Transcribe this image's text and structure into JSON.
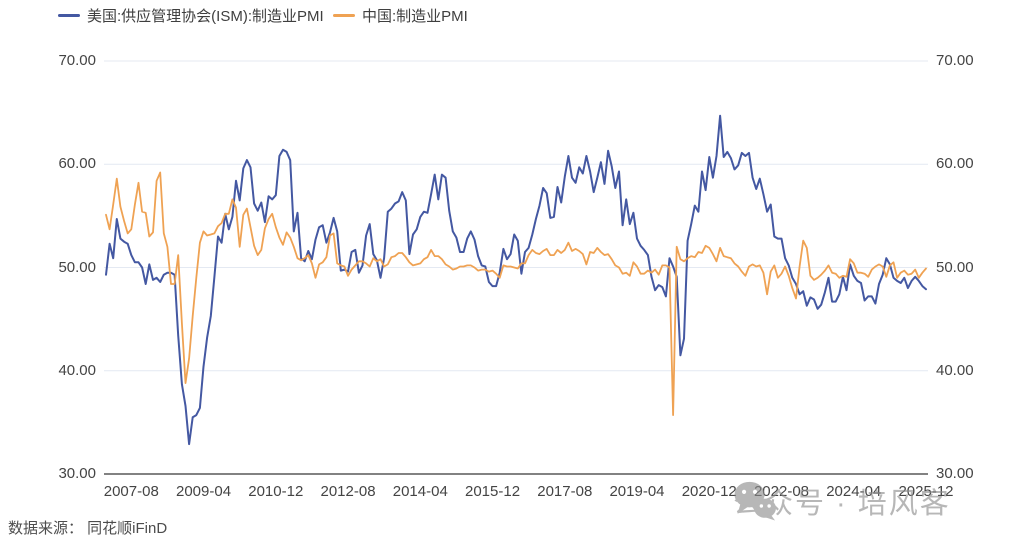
{
  "legend": {
    "us_label": "美国:供应管理协会(ISM):制造业PMI",
    "china_label": "中国:制造业PMI"
  },
  "footer": {
    "source": "数据来源： 同花顺iFinD"
  },
  "watermark": {
    "text": "公众号 · 培风客",
    "icon": "wechat-icon"
  },
  "colors": {
    "us": "#4458A2",
    "china": "#EFA253",
    "grid": "#E4E9F2",
    "axis": "#595959",
    "tick_text": "#444444",
    "watermark": "#8F8F8F",
    "background": "#FFFFFF"
  },
  "chart_data": {
    "type": "line",
    "title": "",
    "xlabel": "",
    "ylabel": "",
    "x_start": "2007-01",
    "x_end": "2025-12",
    "x_frequency": "monthly",
    "ylim": [
      30,
      70
    ],
    "y_ticks": [
      30,
      40,
      50,
      60,
      70
    ],
    "y_tick_labels": [
      "30.00",
      "40.00",
      "50.00",
      "60.00",
      "70.00"
    ],
    "y_axis_sides": [
      "left",
      "right"
    ],
    "grid": "horizontal",
    "legend_position": "top-left",
    "x_tick_labels": [
      "2007-08",
      "2009-04",
      "2010-12",
      "2012-08",
      "2014-04",
      "2015-12",
      "2017-08",
      "2019-04",
      "2020-12",
      "2022-08",
      "2024-04",
      "2025-12"
    ],
    "x_tick_month_indices": [
      7,
      27,
      47,
      67,
      87,
      107,
      127,
      147,
      167,
      187,
      207,
      227
    ],
    "series": [
      {
        "name": "美国:供应管理协会(ISM):制造业PMI",
        "color": "#4458A2",
        "values": [
          49.3,
          52.3,
          50.9,
          54.7,
          52.8,
          52.5,
          52.3,
          51.2,
          50.5,
          50.5,
          50.0,
          48.4,
          50.3,
          48.8,
          49.0,
          48.6,
          49.3,
          49.5,
          49.5,
          49.3,
          43.4,
          38.7,
          36.6,
          32.9,
          35.5,
          35.7,
          36.4,
          40.4,
          43.2,
          45.3,
          49.1,
          53.0,
          52.4,
          55.2,
          53.7,
          54.9,
          58.4,
          56.5,
          59.6,
          60.4,
          59.7,
          56.2,
          55.5,
          56.3,
          54.4,
          56.9,
          56.6,
          57.0,
          60.8,
          61.4,
          61.2,
          60.4,
          53.5,
          55.3,
          50.9,
          50.6,
          51.6,
          50.8,
          52.7,
          53.9,
          54.1,
          52.4,
          53.4,
          54.8,
          53.5,
          49.7,
          49.8,
          49.6,
          51.5,
          51.7,
          49.5,
          50.2,
          53.1,
          54.2,
          51.3,
          50.7,
          49.0,
          50.9,
          55.4,
          55.7,
          56.2,
          56.4,
          57.3,
          56.5,
          51.3,
          53.2,
          53.7,
          54.9,
          55.4,
          55.3,
          57.1,
          59.0,
          56.6,
          59.0,
          58.7,
          55.5,
          53.5,
          52.9,
          51.5,
          51.5,
          52.8,
          53.5,
          52.7,
          51.1,
          50.2,
          50.1,
          48.6,
          48.2,
          48.2,
          49.5,
          51.8,
          50.8,
          51.3,
          53.2,
          52.6,
          49.4,
          51.5,
          51.9,
          53.2,
          54.7,
          56.0,
          57.7,
          57.2,
          54.8,
          54.9,
          57.8,
          56.3,
          58.8,
          60.8,
          58.7,
          58.2,
          59.7,
          59.1,
          60.8,
          59.3,
          57.3,
          58.7,
          60.2,
          58.1,
          61.3,
          59.8,
          57.7,
          59.3,
          54.1,
          56.6,
          54.2,
          55.3,
          52.8,
          52.1,
          51.7,
          51.2,
          49.1,
          47.8,
          48.3,
          48.1,
          47.2,
          50.9,
          50.1,
          49.1,
          41.5,
          43.1,
          52.6,
          54.2,
          56.0,
          55.4,
          59.3,
          57.5,
          60.7,
          58.7,
          60.8,
          64.7,
          60.7,
          61.2,
          60.6,
          59.5,
          59.9,
          61.1,
          60.8,
          61.1,
          58.7,
          57.6,
          58.6,
          57.1,
          55.4,
          56.1,
          53.0,
          52.8,
          52.8,
          50.9,
          50.2,
          49.0,
          48.4,
          47.4,
          47.7,
          46.3,
          47.1,
          46.9,
          46.0,
          46.4,
          47.6,
          49.0,
          46.7,
          46.7,
          47.4,
          49.1,
          47.8,
          50.3,
          49.2,
          48.7,
          48.5,
          46.8,
          47.2,
          47.2,
          46.5,
          48.4,
          49.3,
          50.9,
          50.3,
          49.0,
          48.7,
          48.5,
          49.0,
          48.0,
          48.7,
          49.1,
          48.7,
          48.2,
          47.9
        ]
      },
      {
        "name": "中国:制造业PMI",
        "color": "#EFA253",
        "values": [
          55.1,
          53.7,
          56.1,
          58.6,
          55.9,
          54.5,
          53.3,
          53.7,
          56.1,
          58.2,
          55.4,
          55.3,
          53.0,
          53.4,
          58.4,
          59.2,
          53.3,
          52.0,
          48.4,
          48.4,
          51.2,
          44.6,
          38.8,
          41.2,
          45.3,
          49.0,
          52.4,
          53.5,
          53.1,
          53.2,
          53.3,
          54.0,
          54.3,
          55.2,
          55.2,
          56.6,
          55.8,
          52.0,
          55.1,
          55.7,
          53.9,
          52.1,
          51.2,
          51.7,
          53.8,
          54.7,
          55.2,
          53.9,
          52.9,
          52.2,
          53.4,
          52.9,
          52.0,
          50.9,
          50.7,
          50.9,
          51.2,
          50.4,
          49.0,
          50.3,
          50.5,
          51.0,
          53.1,
          53.3,
          50.4,
          50.2,
          50.1,
          49.2,
          49.8,
          50.2,
          50.6,
          50.6,
          50.4,
          50.1,
          50.9,
          50.6,
          50.8,
          50.1,
          50.3,
          51.0,
          51.1,
          51.4,
          51.4,
          51.0,
          50.5,
          50.2,
          50.3,
          50.4,
          50.8,
          51.0,
          51.7,
          51.1,
          51.1,
          50.8,
          50.3,
          50.1,
          49.8,
          49.9,
          50.1,
          50.1,
          50.2,
          50.2,
          50.0,
          49.7,
          49.8,
          49.8,
          49.6,
          49.7,
          49.4,
          49.0,
          50.2,
          50.1,
          50.1,
          50.0,
          49.9,
          50.4,
          50.4,
          51.2,
          51.7,
          51.4,
          51.3,
          51.6,
          51.8,
          51.2,
          51.2,
          51.7,
          51.4,
          51.7,
          52.4,
          51.6,
          51.8,
          51.6,
          51.3,
          50.3,
          51.5,
          51.4,
          51.9,
          51.5,
          51.2,
          51.3,
          50.8,
          50.2,
          50.0,
          49.4,
          49.5,
          49.2,
          50.5,
          50.1,
          49.4,
          49.4,
          49.7,
          49.5,
          49.8,
          49.3,
          50.2,
          50.2,
          50.0,
          35.7,
          52.0,
          50.8,
          50.6,
          50.9,
          51.1,
          51.0,
          51.5,
          51.4,
          52.1,
          51.9,
          51.3,
          50.6,
          51.9,
          51.1,
          51.0,
          50.9,
          50.4,
          50.1,
          49.6,
          49.2,
          50.1,
          50.3,
          50.1,
          50.2,
          49.5,
          47.4,
          49.6,
          50.2,
          49.0,
          49.4,
          50.1,
          49.2,
          48.0,
          47.0,
          50.1,
          52.6,
          51.9,
          49.2,
          48.8,
          49.0,
          49.3,
          49.7,
          50.2,
          49.5,
          49.4,
          49.0,
          49.2,
          49.1,
          50.8,
          50.4,
          49.5,
          49.5,
          49.4,
          49.1,
          49.8,
          50.1,
          50.3,
          50.1,
          49.1,
          50.2,
          50.5,
          49.0,
          49.5,
          49.7,
          49.3,
          49.4,
          49.8,
          49.0,
          49.5,
          49.9
        ]
      }
    ]
  }
}
